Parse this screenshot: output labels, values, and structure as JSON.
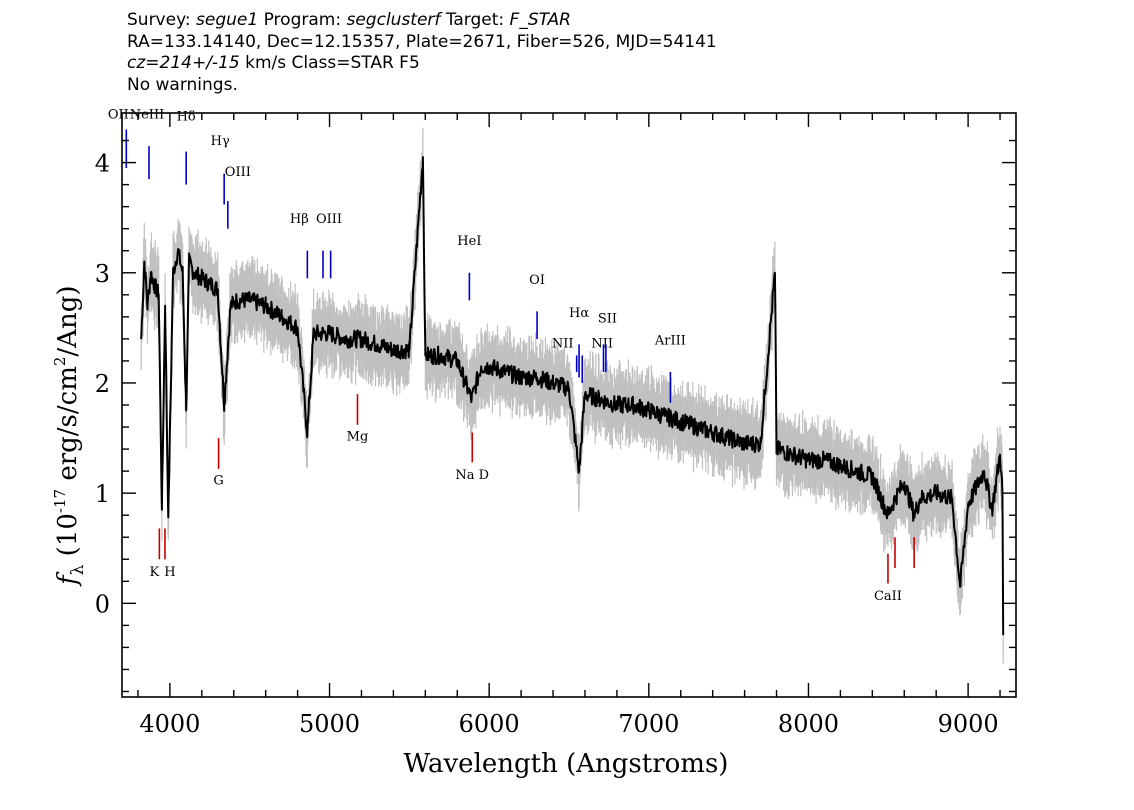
{
  "header": {
    "line1": {
      "survey_label": "Survey:",
      "survey": "segue1",
      "program_label": "Program:",
      "program": "segclusterf",
      "target_label": "Target:",
      "target": "F_STAR"
    },
    "line2": "RA=133.14140, Dec=12.15357, Plate=2671, Fiber=526, MJD=54141",
    "line3": {
      "cz": "cz=214+/-15",
      "rest": "km/s Class=STAR F5"
    },
    "line4": "No warnings."
  },
  "chart_data": {
    "type": "line",
    "xlabel": "Wavelength (Angstroms)",
    "ylabel": "f_λ (10^-17 erg/s/cm^2/Ang)",
    "xlim": [
      3700,
      9300
    ],
    "ylim": [
      -0.85,
      4.45
    ],
    "x_ticks": [
      4000,
      5000,
      6000,
      7000,
      8000,
      9000
    ],
    "y_ticks": [
      0,
      1,
      2,
      3,
      4
    ],
    "series": [
      {
        "name": "flux",
        "color": "#000000",
        "x": [
          3820,
          3840,
          3860,
          3880,
          3900,
          3930,
          3950,
          3970,
          3990,
          4020,
          4050,
          4080,
          4102,
          4120,
          4150,
          4200,
          4250,
          4300,
          4340,
          4380,
          4420,
          4500,
          4600,
          4700,
          4800,
          4861,
          4900,
          5000,
          5100,
          5200,
          5300,
          5400,
          5500,
          5585,
          5600,
          5700,
          5800,
          5890,
          5950,
          6000,
          6100,
          6200,
          6300,
          6400,
          6500,
          6563,
          6600,
          6700,
          6800,
          6900,
          7000,
          7100,
          7200,
          7300,
          7400,
          7500,
          7600,
          7700,
          7790,
          7800,
          7900,
          8000,
          8100,
          8200,
          8300,
          8400,
          8498,
          8542,
          8600,
          8662,
          8700,
          8800,
          8900,
          8950,
          9000,
          9100,
          9150,
          9200,
          9215,
          9220
        ],
        "y": [
          2.4,
          3.1,
          2.7,
          3.0,
          2.9,
          2.8,
          0.85,
          2.7,
          0.78,
          3.0,
          3.2,
          3.0,
          1.75,
          3.1,
          3.0,
          2.95,
          2.9,
          2.85,
          1.8,
          2.7,
          2.75,
          2.75,
          2.7,
          2.6,
          2.5,
          1.55,
          2.45,
          2.45,
          2.4,
          2.4,
          2.35,
          2.3,
          2.3,
          4.05,
          2.25,
          2.25,
          2.2,
          1.85,
          2.15,
          2.15,
          2.1,
          2.05,
          2.05,
          2.0,
          1.95,
          1.2,
          1.9,
          1.85,
          1.8,
          1.8,
          1.75,
          1.7,
          1.65,
          1.6,
          1.55,
          1.5,
          1.45,
          1.45,
          3.0,
          1.4,
          1.35,
          1.3,
          1.3,
          1.25,
          1.2,
          1.15,
          0.8,
          0.95,
          1.1,
          0.8,
          0.95,
          1.0,
          0.95,
          0.15,
          0.9,
          1.2,
          0.85,
          1.35,
          1.0,
          -0.28
        ]
      }
    ],
    "error_band": {
      "name": "noise",
      "color": "#c0c0c0",
      "half_width_y": 0.28
    },
    "lines": [
      {
        "label": "OII",
        "x": 3727,
        "y_top": 4.3,
        "y_bot": 3.95,
        "color": "#0000c8",
        "label_y": 4.4,
        "label_dx": -8
      },
      {
        "label": "NeIII",
        "x": 3869,
        "y_top": 4.15,
        "y_bot": 3.85,
        "color": "#0000c8",
        "label_y": 4.4,
        "label_dx": -2
      },
      {
        "label": "Hδ",
        "x": 4102,
        "y_top": 4.1,
        "y_bot": 3.8,
        "color": "#0000c8",
        "label_y": 4.38,
        "label_dx": 0
      },
      {
        "label": "Hγ",
        "x": 4340,
        "y_top": 3.9,
        "y_bot": 3.62,
        "color": "#0000c8",
        "label_y": 4.16,
        "label_dx": -4
      },
      {
        "label": "OIII",
        "x": 4363,
        "y_top": 3.65,
        "y_bot": 3.4,
        "color": "#0000c8",
        "label_y": 3.88,
        "label_dx": 10
      },
      {
        "label": "Hβ",
        "x": 4861,
        "y_top": 3.2,
        "y_bot": 2.95,
        "color": "#0000c8",
        "label_y": 3.45,
        "label_dx": -8
      },
      {
        "label": "OIII",
        "x": 4959,
        "y_top": 3.2,
        "y_bot": 2.95,
        "color": "#0000c8",
        "label_y": 3.45,
        "label_dx": 6
      },
      {
        "label": "OIII",
        "x": 5007,
        "y_top": 3.2,
        "y_bot": 2.95,
        "color": "#0000c8",
        "label_y": 3.45,
        "label_dx": 0,
        "hide_label": true
      },
      {
        "label": "HeI",
        "x": 5876,
        "y_top": 3.0,
        "y_bot": 2.75,
        "color": "#0000c8",
        "label_y": 3.25,
        "label_dx": 0
      },
      {
        "label": "OI",
        "x": 6300,
        "y_top": 2.65,
        "y_bot": 2.4,
        "color": "#0000c8",
        "label_y": 2.9,
        "label_dx": 0
      },
      {
        "label": "NII",
        "x": 6548,
        "y_top": 2.25,
        "y_bot": 2.1,
        "color": "#0000c8",
        "label_y": 2.32,
        "label_dx": -14
      },
      {
        "label": "Hα",
        "x": 6563,
        "y_top": 2.35,
        "y_bot": 2.05,
        "color": "#0000c8",
        "label_y": 2.6,
        "label_dx": 0
      },
      {
        "label": "NII",
        "x": 6583,
        "y_top": 2.25,
        "y_bot": 2.0,
        "color": "#0000c8",
        "label_y": 2.32,
        "label_dx": 20
      },
      {
        "label": "SII",
        "x": 6716,
        "y_top": 2.35,
        "y_bot": 2.1,
        "color": "#0000c8",
        "label_y": 2.55,
        "label_dx": 4
      },
      {
        "label": "SII",
        "x": 6731,
        "y_top": 2.35,
        "y_bot": 2.1,
        "color": "#0000c8",
        "label_y": 2.55,
        "label_dx": 0,
        "hide_label": true
      },
      {
        "label": "ArIII",
        "x": 7135,
        "y_top": 2.1,
        "y_bot": 1.82,
        "color": "#0000c8",
        "label_y": 2.35,
        "label_dx": 0
      },
      {
        "label": "K",
        "x": 3934,
        "y_top": 0.68,
        "y_bot": 0.4,
        "color": "#c80000",
        "label_y": 0.25,
        "label_dx": -5
      },
      {
        "label": "H",
        "x": 3969,
        "y_top": 0.68,
        "y_bot": 0.4,
        "color": "#c80000",
        "label_y": 0.25,
        "label_dx": 5
      },
      {
        "label": "G",
        "x": 4305,
        "y_top": 1.5,
        "y_bot": 1.22,
        "color": "#c80000",
        "label_y": 1.08,
        "label_dx": 0
      },
      {
        "label": "Mg",
        "x": 5175,
        "y_top": 1.9,
        "y_bot": 1.62,
        "color": "#c80000",
        "label_y": 1.48,
        "label_dx": 0
      },
      {
        "label": "Na D",
        "x": 5894,
        "y_top": 1.55,
        "y_bot": 1.28,
        "color": "#c80000",
        "label_y": 1.13,
        "label_dx": 0
      },
      {
        "label": "CaII",
        "x": 8498,
        "y_top": 0.45,
        "y_bot": 0.18,
        "color": "#c80000",
        "label_y": 0.03,
        "label_dx": 0
      },
      {
        "label": "CaII",
        "x": 8542,
        "y_top": 0.6,
        "y_bot": 0.32,
        "color": "#c80000",
        "label_y": 0,
        "label_dx": 0,
        "hide_label": true
      },
      {
        "label": "CaII",
        "x": 8662,
        "y_top": 0.6,
        "y_bot": 0.32,
        "color": "#c80000",
        "label_y": 0,
        "label_dx": 0,
        "hide_label": true
      }
    ]
  }
}
